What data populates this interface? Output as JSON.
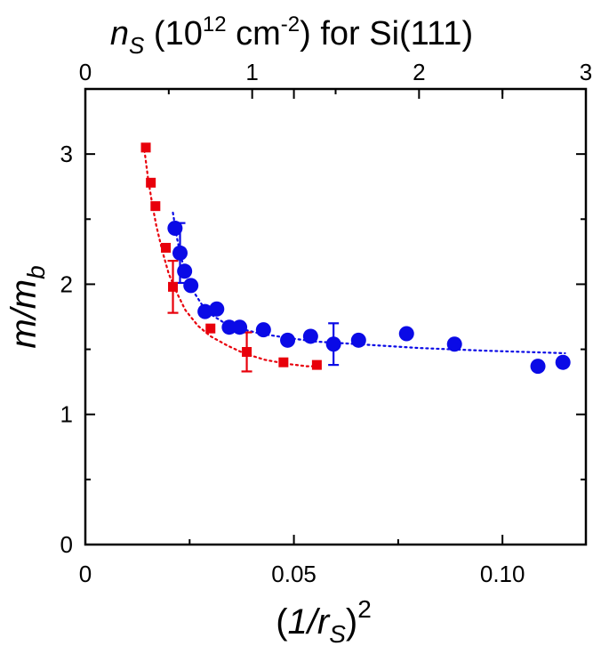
{
  "chart_data": {
    "type": "scatter",
    "title": "",
    "top_axis": {
      "label_var": "n",
      "label_sub": "S",
      "label_pre": " (10",
      "label_exp1": "12",
      "label_mid": " cm",
      "label_exp2": "-2",
      "label_post": ") for Si(111)",
      "ticks": [
        0,
        1,
        2,
        3
      ],
      "tick_labels": [
        "0",
        "1",
        "2",
        "3"
      ],
      "range": [
        0,
        3
      ]
    },
    "x_axis": {
      "label_open": "(",
      "label_var": "1/r",
      "label_sub": "S",
      "label_close": ")",
      "label_exp": "2",
      "ticks": [
        0,
        0.05,
        0.1
      ],
      "tick_labels": [
        "0",
        "0.05",
        "0.10"
      ],
      "minor_ticks": [
        0.025,
        0.075
      ],
      "range": [
        0,
        0.12
      ]
    },
    "y_axis": {
      "label_var": "m/m",
      "label_sub": "b",
      "ticks": [
        0,
        1,
        2,
        3
      ],
      "tick_labels": [
        "0",
        "1",
        "2",
        "3"
      ],
      "minor_ticks": [
        0.5,
        1.5,
        2.5
      ],
      "range": [
        0,
        3.5
      ]
    },
    "series": [
      {
        "color": "#e8000b",
        "marker": "square",
        "points": [
          [
            0.0145,
            3.05
          ],
          [
            0.0157,
            2.78
          ],
          [
            0.0168,
            2.6
          ],
          [
            0.0193,
            2.28
          ],
          [
            0.021,
            1.98
          ],
          [
            0.03,
            1.66
          ],
          [
            0.0387,
            1.48
          ],
          [
            0.0475,
            1.4
          ],
          [
            0.0555,
            1.38
          ]
        ],
        "error_bars": [
          {
            "x": 0.021,
            "y": 1.98,
            "err": 0.2
          },
          {
            "x": 0.0387,
            "y": 1.48,
            "err": 0.15
          }
        ],
        "fit": [
          [
            0.014,
            3.07
          ],
          [
            0.015,
            2.82
          ],
          [
            0.016,
            2.62
          ],
          [
            0.017,
            2.45
          ],
          [
            0.0185,
            2.25
          ],
          [
            0.02,
            2.08
          ],
          [
            0.022,
            1.93
          ],
          [
            0.024,
            1.8
          ],
          [
            0.027,
            1.68
          ],
          [
            0.03,
            1.6
          ],
          [
            0.034,
            1.53
          ],
          [
            0.038,
            1.47
          ],
          [
            0.043,
            1.42
          ],
          [
            0.048,
            1.39
          ],
          [
            0.053,
            1.37
          ],
          [
            0.056,
            1.37
          ]
        ]
      },
      {
        "color": "#0a0ae6",
        "marker": "circle",
        "points": [
          [
            0.0215,
            2.43
          ],
          [
            0.0227,
            2.24
          ],
          [
            0.0238,
            2.1
          ],
          [
            0.0253,
            1.99
          ],
          [
            0.0287,
            1.79
          ],
          [
            0.0315,
            1.81
          ],
          [
            0.0345,
            1.67
          ],
          [
            0.037,
            1.67
          ],
          [
            0.0427,
            1.65
          ],
          [
            0.0485,
            1.57
          ],
          [
            0.054,
            1.6
          ],
          [
            0.0595,
            1.54
          ],
          [
            0.0655,
            1.57
          ],
          [
            0.077,
            1.62
          ],
          [
            0.0885,
            1.54
          ],
          [
            0.1085,
            1.37
          ],
          [
            0.1145,
            1.4
          ]
        ],
        "error_bars": [
          {
            "x": 0.0227,
            "y": 2.24,
            "err": 0.23
          },
          {
            "x": 0.0595,
            "y": 1.54,
            "err": 0.16
          }
        ],
        "fit": [
          [
            0.021,
            2.55
          ],
          [
            0.022,
            2.35
          ],
          [
            0.023,
            2.2
          ],
          [
            0.0245,
            2.05
          ],
          [
            0.026,
            1.94
          ],
          [
            0.028,
            1.84
          ],
          [
            0.03,
            1.77
          ],
          [
            0.033,
            1.71
          ],
          [
            0.037,
            1.66
          ],
          [
            0.042,
            1.62
          ],
          [
            0.048,
            1.59
          ],
          [
            0.055,
            1.56
          ],
          [
            0.065,
            1.54
          ],
          [
            0.08,
            1.51
          ],
          [
            0.095,
            1.49
          ],
          [
            0.11,
            1.475
          ],
          [
            0.115,
            1.47
          ]
        ]
      }
    ]
  }
}
